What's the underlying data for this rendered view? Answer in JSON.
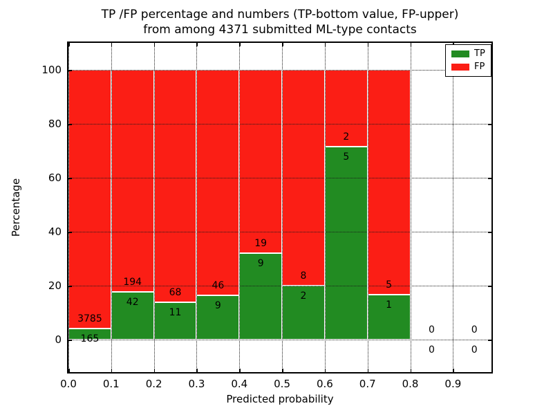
{
  "figure": {
    "title_line1": "TP /FP percentage and numbers (TP-bottom value, FP-upper)",
    "title_line2": "from among 4371 submitted ML-type contacts",
    "xlabel": "Predicted probability",
    "ylabel": "Percentage"
  },
  "chart_data": {
    "type": "bar",
    "stacked": true,
    "normalized_to_percent": true,
    "title": "TP /FP percentage and numbers (TP-bottom value, FP-upper)\nfrom among 4371 submitted ML-type contacts",
    "xlabel": "Predicted probability",
    "ylabel": "Percentage",
    "total_contacts": 4371,
    "bin_width": 0.1,
    "bin_starts": [
      0.0,
      0.1,
      0.2,
      0.3,
      0.4,
      0.5,
      0.6,
      0.7,
      0.8,
      0.9
    ],
    "series": [
      {
        "name": "TP",
        "color": "#228b22",
        "counts": [
          165,
          42,
          11,
          9,
          9,
          2,
          5,
          1,
          0,
          0
        ]
      },
      {
        "name": "FP",
        "color": "#fb1e15",
        "counts": [
          3785,
          194,
          68,
          46,
          19,
          8,
          2,
          5,
          0,
          0
        ]
      }
    ],
    "tp_percent": [
      4.18,
      17.8,
      13.92,
      16.36,
      32.14,
      20.0,
      71.43,
      16.67,
      0,
      0
    ],
    "bar_total_percent": 100,
    "xticks": [
      "0.0",
      "0.1",
      "0.2",
      "0.3",
      "0.4",
      "0.5",
      "0.6",
      "0.7",
      "0.8",
      "0.9"
    ],
    "yticks": [
      "0",
      "20",
      "40",
      "60",
      "80",
      "100"
    ],
    "ytick_values": [
      0,
      20,
      40,
      60,
      80,
      100
    ],
    "xtick_values": [
      0.0,
      0.1,
      0.2,
      0.3,
      0.4,
      0.5,
      0.6,
      0.7,
      0.8,
      0.9
    ],
    "xlim": [
      0,
      0.99
    ],
    "ylim": [
      -12,
      110
    ],
    "grid": "dotted",
    "grid_color": "#1a1a1a",
    "bar_edge_color": "#ffffff",
    "legend_position": "upper right",
    "legend": [
      {
        "label": "TP",
        "color": "#228b22"
      },
      {
        "label": "FP",
        "color": "#fb1e15"
      }
    ]
  }
}
